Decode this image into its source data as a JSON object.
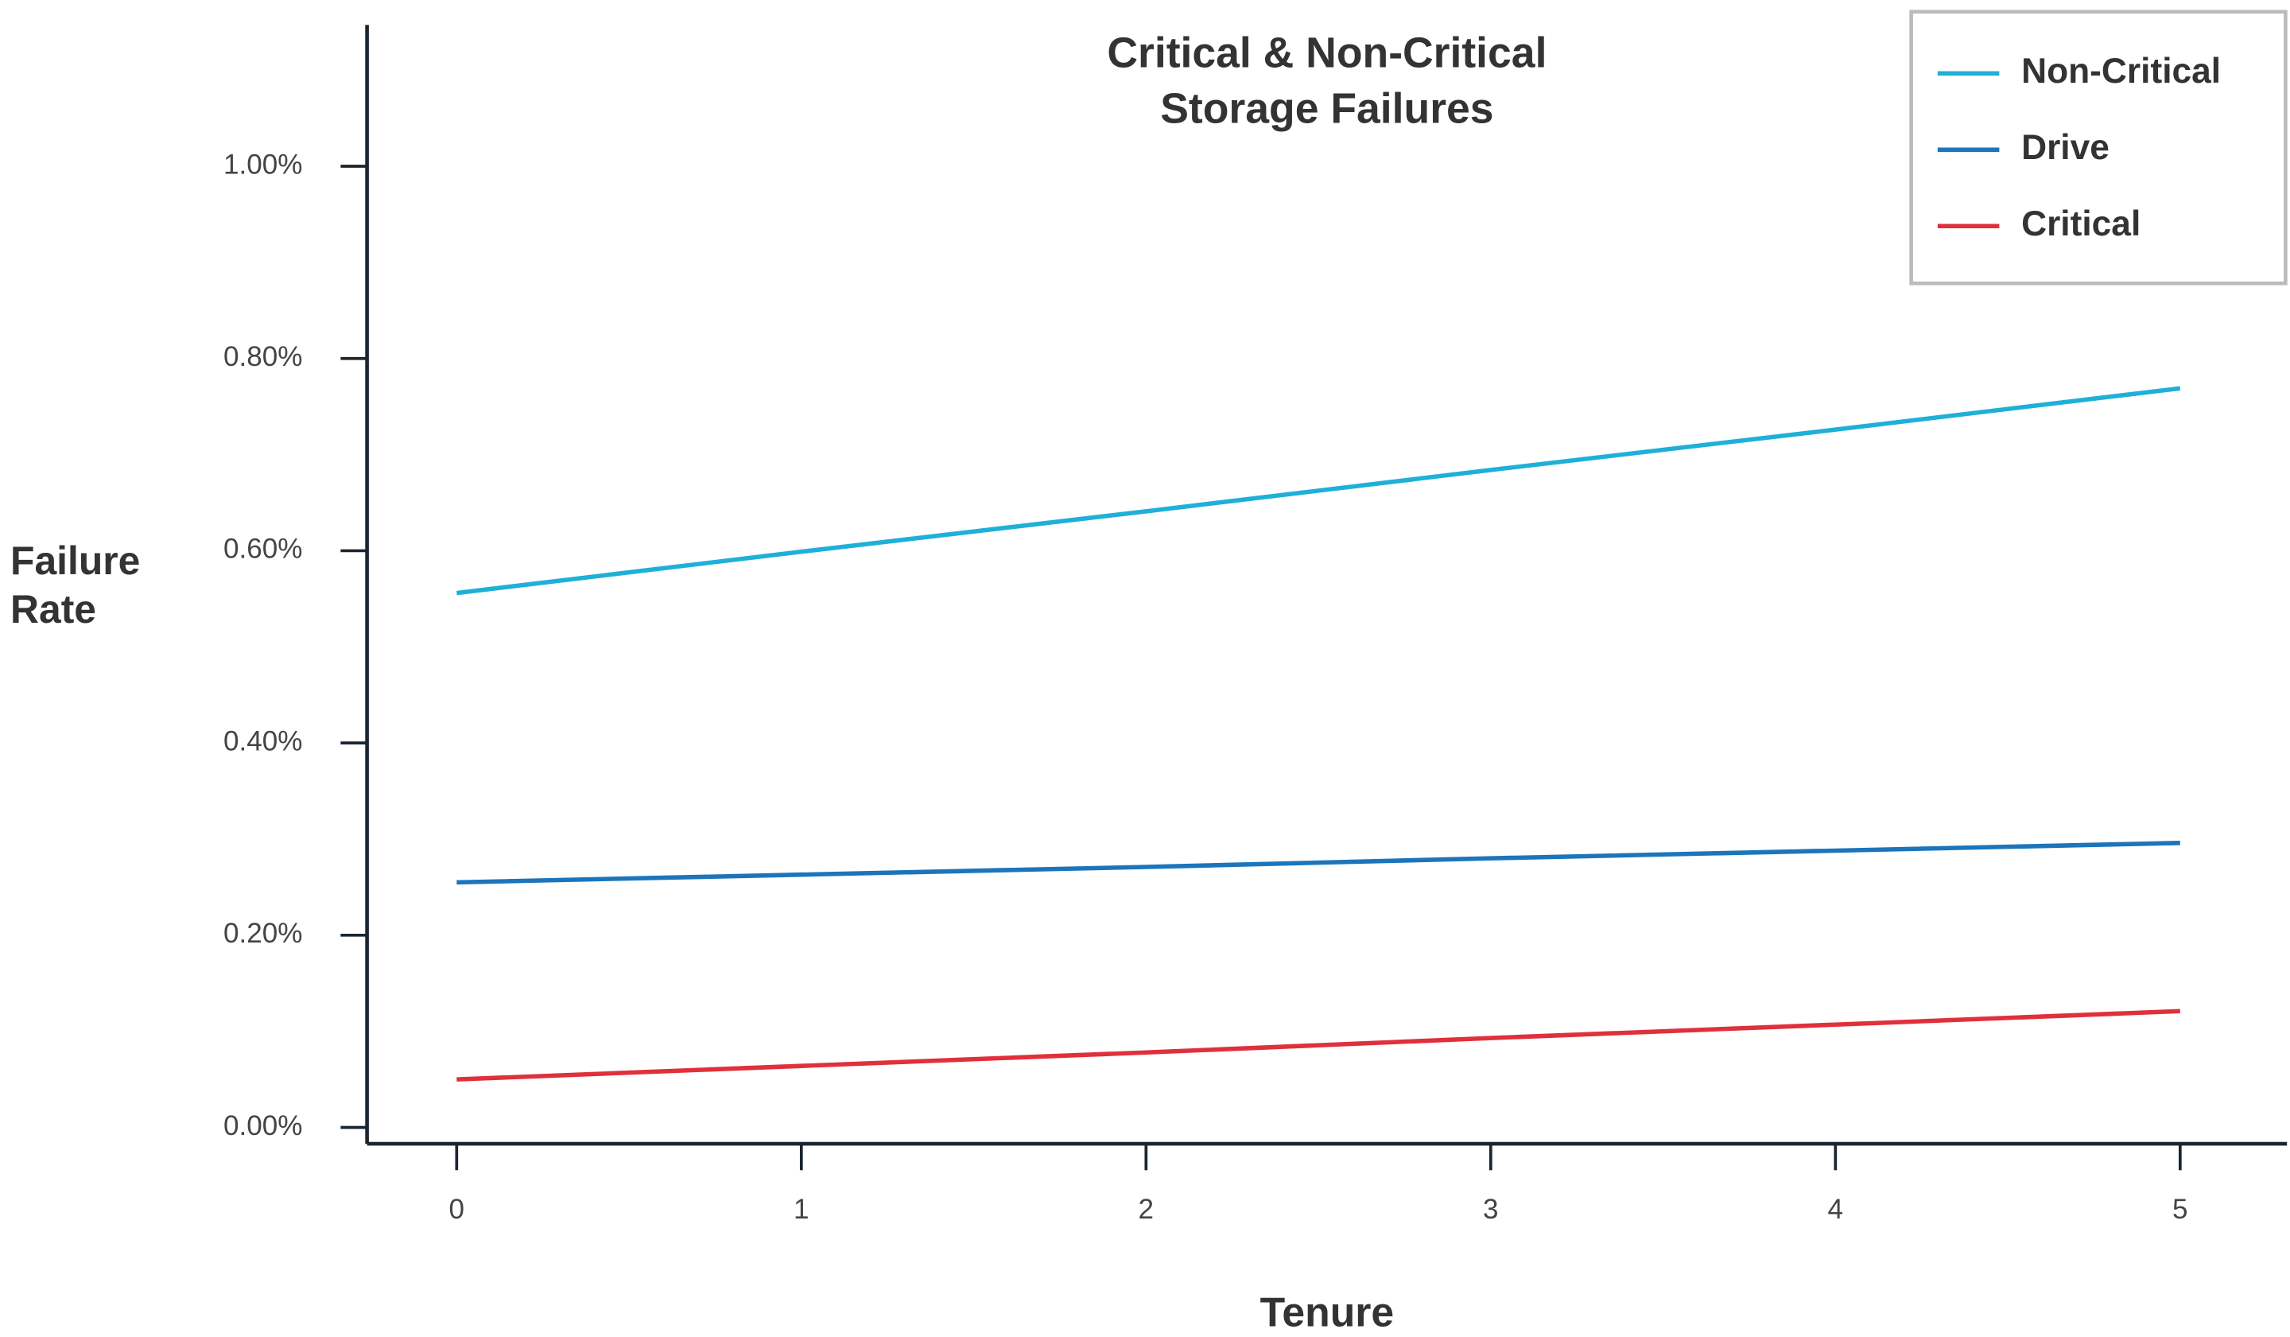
{
  "chart_data": {
    "type": "line",
    "title": [
      "Critical & Non-Critical",
      "Storage Failures"
    ],
    "xlabel": "Tenure",
    "ylabel": [
      "Failure",
      "Rate"
    ],
    "x": [
      0,
      1,
      2,
      3,
      4,
      5
    ],
    "series": [
      {
        "name": "Non-Critical",
        "color": "#1fb0d8",
        "values": [
          0.556,
          0.599,
          0.641,
          0.684,
          0.726,
          0.769
        ]
      },
      {
        "name": "Drive",
        "color": "#1c75bb",
        "values": [
          0.255,
          0.263,
          0.271,
          0.28,
          0.288,
          0.296
        ]
      },
      {
        "name": "Critical",
        "color": "#e0303b",
        "values": [
          0.05,
          0.064,
          0.078,
          0.093,
          0.107,
          0.121
        ]
      }
    ],
    "xlim": [
      -0.26,
      5.31
    ],
    "ylim": [
      -0.017,
      1.147
    ],
    "xticks": [
      0,
      1,
      2,
      3,
      4,
      5
    ],
    "yticks": [
      {
        "value": 0,
        "label": "0.00%"
      },
      {
        "value": 0.2,
        "label": "0.20%"
      },
      {
        "value": 0.4,
        "label": "0.40%"
      },
      {
        "value": 0.6,
        "label": "0.60%"
      },
      {
        "value": 0.8,
        "label": "0.80%"
      },
      {
        "value": 1.0,
        "label": "1.00%"
      }
    ],
    "grid": false,
    "legend": "upper right"
  }
}
